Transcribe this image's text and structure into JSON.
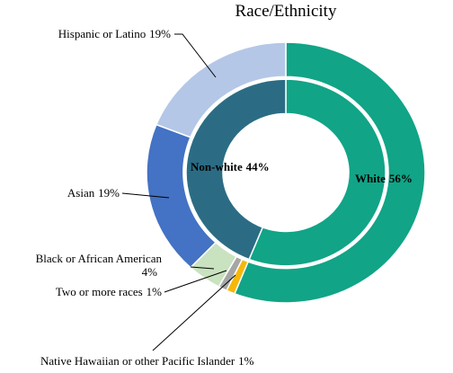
{
  "chart_data": {
    "type": "nested-donut",
    "title": "Race/Ethnicity",
    "rings": [
      {
        "categories": [
          "White",
          "Non-white"
        ],
        "values": [
          56,
          44
        ],
        "value_labels": [
          "56%",
          "44%"
        ],
        "colors": [
          "#11a487",
          "#2b6c84"
        ]
      },
      {
        "categories": [
          null,
          "Native Hawaiian or other Pacific Islander",
          "Two or more races",
          "Black or African American",
          "Asian",
          "Hispanic or Latino"
        ],
        "values": [
          56,
          1,
          1,
          4,
          19,
          19
        ],
        "value_labels": [
          null,
          "1%",
          "1%",
          "4%",
          "19%",
          "19%"
        ],
        "colors": [
          "#11a487",
          "#f5b80a",
          "#a6a6a6",
          "#c9e2bf",
          "#4472c4",
          "#b4c7e7"
        ]
      }
    ]
  }
}
